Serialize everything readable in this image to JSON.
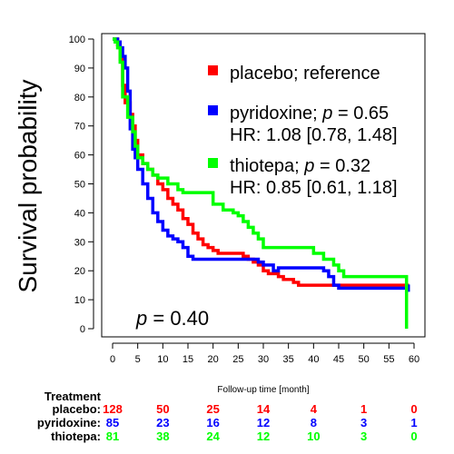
{
  "chart_data": {
    "type": "line",
    "subtype": "kaplan-meier",
    "title": "",
    "xlabel": "Follow-up time [month]",
    "ylabel": "Survival probability",
    "xlim": [
      0,
      60
    ],
    "ylim": [
      0,
      100
    ],
    "xticks": [
      0,
      5,
      10,
      15,
      20,
      25,
      30,
      35,
      40,
      45,
      50,
      55,
      60
    ],
    "yticks": [
      0,
      10,
      20,
      30,
      40,
      50,
      60,
      70,
      80,
      90,
      100
    ],
    "grid": false,
    "legend_position": "top-right",
    "overall_p_text": "= 0.40",
    "legend": [
      {
        "color": "#ff0000",
        "text": "placebo; reference",
        "p_text": "",
        "hr_text": ""
      },
      {
        "color": "#0000ff",
        "text": "pyridoxine;",
        "p_text": "= 0.65",
        "hr_text": "HR: 1.08 [0.78, 1.48]"
      },
      {
        "color": "#00ff00",
        "text": "thiotepa;",
        "p_text": "= 0.32",
        "hr_text": "HR: 0.85 [0.61, 1.18]"
      }
    ],
    "series": [
      {
        "color": "#ff0000",
        "points": [
          [
            0,
            100
          ],
          [
            1,
            98
          ],
          [
            1.5,
            93
          ],
          [
            2,
            84
          ],
          [
            2.5,
            78
          ],
          [
            3,
            78
          ],
          [
            3.5,
            74
          ],
          [
            4,
            70
          ],
          [
            4.5,
            65
          ],
          [
            5,
            60
          ],
          [
            6,
            57
          ],
          [
            7,
            55
          ],
          [
            8,
            53
          ],
          [
            9,
            50
          ],
          [
            10,
            48
          ],
          [
            11,
            45
          ],
          [
            12,
            43
          ],
          [
            13,
            41
          ],
          [
            14,
            38
          ],
          [
            15,
            36
          ],
          [
            16,
            33
          ],
          [
            17,
            31
          ],
          [
            18,
            29
          ],
          [
            19,
            28
          ],
          [
            20,
            27
          ],
          [
            21,
            26
          ],
          [
            25,
            26
          ],
          [
            26,
            25
          ],
          [
            27,
            24
          ],
          [
            28,
            23
          ],
          [
            29,
            22
          ],
          [
            30,
            20
          ],
          [
            31,
            19
          ],
          [
            33,
            18
          ],
          [
            34,
            17
          ],
          [
            36,
            16
          ],
          [
            37,
            15
          ],
          [
            45,
            15
          ],
          [
            59,
            15
          ]
        ]
      },
      {
        "color": "#0000ff",
        "points": [
          [
            0,
            100
          ],
          [
            1,
            99
          ],
          [
            1.5,
            97
          ],
          [
            2,
            94
          ],
          [
            2.5,
            90
          ],
          [
            3,
            82
          ],
          [
            3.5,
            69
          ],
          [
            4,
            62
          ],
          [
            4.5,
            59
          ],
          [
            5,
            55
          ],
          [
            6,
            50
          ],
          [
            7,
            45
          ],
          [
            8,
            40
          ],
          [
            9,
            37
          ],
          [
            10,
            34
          ],
          [
            11,
            32
          ],
          [
            12,
            31
          ],
          [
            13,
            30
          ],
          [
            14,
            28
          ],
          [
            15,
            25
          ],
          [
            16,
            24
          ],
          [
            26,
            24
          ],
          [
            29,
            23
          ],
          [
            30,
            22
          ],
          [
            32,
            20
          ],
          [
            33,
            21
          ],
          [
            42,
            20
          ],
          [
            43,
            18
          ],
          [
            44,
            15
          ],
          [
            45,
            14
          ],
          [
            50,
            14
          ],
          [
            59,
            14
          ]
        ]
      },
      {
        "color": "#00ff00",
        "points": [
          [
            0,
            100
          ],
          [
            0.5,
            99
          ],
          [
            1,
            97
          ],
          [
            1.5,
            92
          ],
          [
            2,
            80
          ],
          [
            3,
            73
          ],
          [
            4,
            68
          ],
          [
            4.5,
            63
          ],
          [
            5,
            59
          ],
          [
            6,
            57
          ],
          [
            7,
            55
          ],
          [
            8,
            53
          ],
          [
            9,
            52
          ],
          [
            11,
            50
          ],
          [
            13,
            48
          ],
          [
            14,
            47
          ],
          [
            19,
            47
          ],
          [
            20,
            43
          ],
          [
            22,
            41
          ],
          [
            24,
            40
          ],
          [
            25,
            39
          ],
          [
            26,
            37
          ],
          [
            27,
            35
          ],
          [
            28,
            33
          ],
          [
            29,
            31
          ],
          [
            30,
            28
          ],
          [
            39,
            28
          ],
          [
            40,
            26
          ],
          [
            42,
            24
          ],
          [
            44,
            22
          ],
          [
            45,
            20
          ],
          [
            46,
            18
          ],
          [
            58,
            18
          ],
          [
            58.5,
            0
          ]
        ]
      }
    ],
    "risk_table": {
      "header": "Treatment",
      "columns_x": [
        0,
        10,
        20,
        30,
        40,
        50,
        60
      ],
      "rows": [
        {
          "label": "placebo:",
          "color": "#ff0000",
          "values": [
            "128",
            "50",
            "25",
            "14",
            "4",
            "1",
            "0"
          ]
        },
        {
          "label": "pyridoxine:",
          "color": "#0000ff",
          "values": [
            "85",
            "23",
            "16",
            "12",
            "8",
            "3",
            "1"
          ]
        },
        {
          "label": "thiotepa:",
          "color": "#00ff00",
          "values": [
            "81",
            "38",
            "24",
            "12",
            "10",
            "3",
            "0"
          ]
        }
      ]
    }
  }
}
